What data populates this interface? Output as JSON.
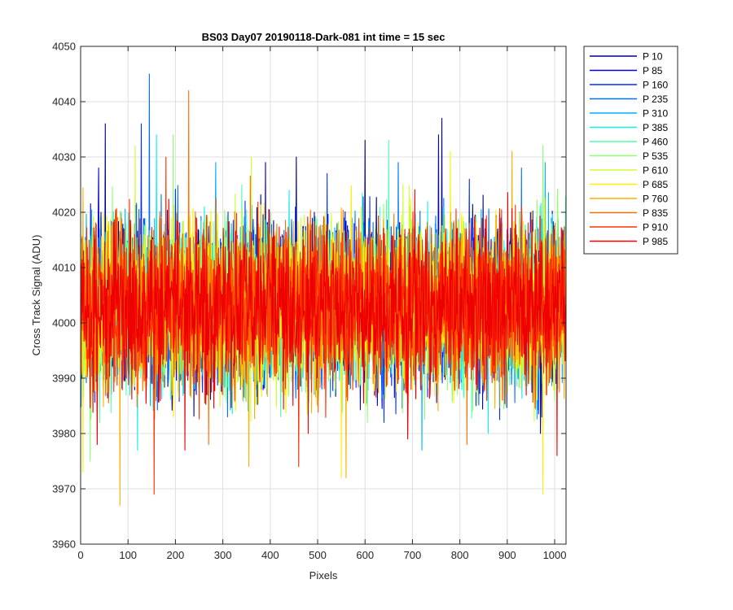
{
  "chart_data": {
    "type": "line",
    "title": "BS03 Day07 20190118-Dark-081 int time = 15 sec",
    "xlabel": "Pixels",
    "ylabel": "Cross Track Signal (ADU)",
    "xlim": [
      0,
      1024
    ],
    "ylim": [
      3960,
      4050
    ],
    "x_ticks": [
      "0",
      "100",
      "200",
      "300",
      "400",
      "500",
      "600",
      "700",
      "800",
      "900",
      "1000"
    ],
    "y_ticks": [
      "3960",
      "3970",
      "3980",
      "3990",
      "4000",
      "4010",
      "4020",
      "4030",
      "4040",
      "4050"
    ],
    "grid": true,
    "legend_position": "outside-top-right",
    "noise_profile": {
      "mean": 4003,
      "typical_range": [
        3985,
        4025
      ]
    },
    "series": [
      {
        "name": "P 10",
        "color": "#00008f",
        "extremes": [
          [
            762,
            4037
          ],
          [
            52,
            4036
          ],
          [
            600,
            4033
          ],
          [
            455,
            4030
          ]
        ]
      },
      {
        "name": "P 85",
        "color": "#0000d8",
        "extremes": [
          [
            38,
            4028
          ],
          [
            390,
            4029
          ],
          [
            755,
            4034
          ],
          [
            970,
            3980
          ]
        ]
      },
      {
        "name": "P 160",
        "color": "#0030ff",
        "extremes": [
          [
            128,
            4036
          ],
          [
            520,
            4027
          ],
          [
            820,
            4026
          ],
          [
            640,
            3982
          ]
        ]
      },
      {
        "name": "P 235",
        "color": "#0070ff",
        "extremes": [
          [
            145,
            4045
          ],
          [
            670,
            4029
          ],
          [
            930,
            4028
          ],
          [
            310,
            3983
          ]
        ]
      },
      {
        "name": "P 310",
        "color": "#00b0ff",
        "extremes": [
          [
            285,
            4029
          ],
          [
            980,
            4029
          ],
          [
            720,
            3977
          ]
        ]
      },
      {
        "name": "P 385",
        "color": "#10efef",
        "extremes": [
          [
            160,
            4034
          ],
          [
            440,
            4024
          ],
          [
            120,
            3977
          ],
          [
            860,
            3980
          ]
        ]
      },
      {
        "name": "P 460",
        "color": "#50ffaf",
        "extremes": [
          [
            650,
            4033
          ],
          [
            340,
            4025
          ],
          [
            40,
            3982
          ]
        ]
      },
      {
        "name": "P 535",
        "color": "#90ff6f",
        "extremes": [
          [
            195,
            4034
          ],
          [
            975,
            4032
          ],
          [
            605,
            3982
          ],
          [
            20,
            3975
          ]
        ]
      },
      {
        "name": "P 610",
        "color": "#cfff30",
        "extremes": [
          [
            115,
            4032
          ],
          [
            360,
            4030
          ],
          [
            680,
            4025
          ]
        ]
      },
      {
        "name": "P 685",
        "color": "#ffef00",
        "extremes": [
          [
            5,
            3973
          ],
          [
            975,
            3969
          ],
          [
            550,
            3972
          ],
          [
            780,
            4031
          ]
        ]
      },
      {
        "name": "P 760",
        "color": "#ffaf00",
        "extremes": [
          [
            83,
            3967
          ],
          [
            355,
            3974
          ],
          [
            910,
            4031
          ],
          [
            560,
            3972
          ]
        ]
      },
      {
        "name": "P 835",
        "color": "#ff6f00",
        "extremes": [
          [
            228,
            4042
          ],
          [
            270,
            3978
          ],
          [
            815,
            3978
          ]
        ]
      },
      {
        "name": "P 910",
        "color": "#ff3000",
        "extremes": [
          [
            155,
            3969
          ],
          [
            180,
            4030
          ],
          [
            460,
            3974
          ],
          [
            930,
            4021
          ]
        ]
      },
      {
        "name": "P 985",
        "color": "#ef0000",
        "extremes": [
          [
            35,
            3978
          ],
          [
            220,
            3977
          ],
          [
            480,
            3980
          ],
          [
            690,
            3979
          ],
          [
            1005,
            3976
          ]
        ]
      }
    ]
  }
}
